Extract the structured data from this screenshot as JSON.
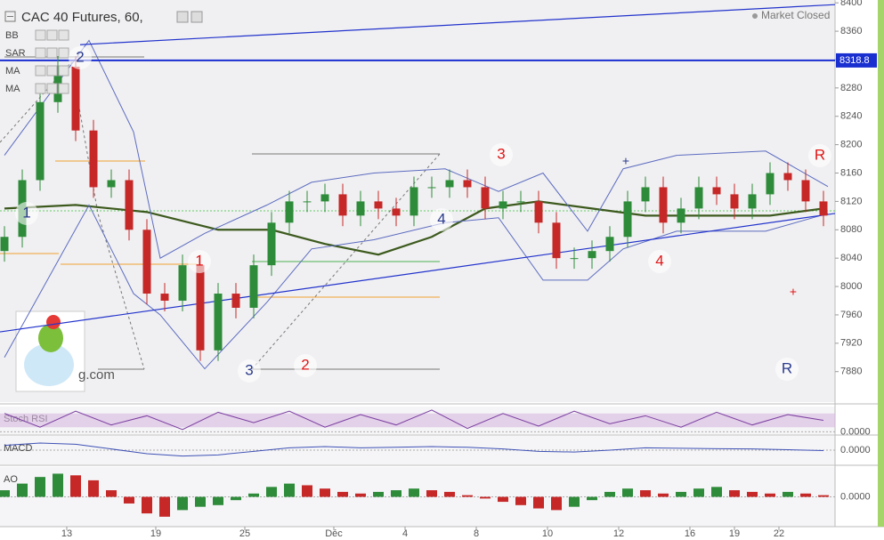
{
  "chart_data": [
    {
      "type": "candlestick",
      "title": "CAC 40 Futures, 60,",
      "indicators": [
        "BB",
        "SAR",
        "MA",
        "MA"
      ],
      "status": "Market Closed",
      "watermark": "g.com",
      "x": [
        0,
        1,
        2,
        3,
        4,
        5,
        6,
        7,
        8,
        9,
        10,
        11,
        12,
        13,
        14,
        15,
        16,
        17,
        18,
        19,
        20,
        21,
        22,
        23,
        24,
        25,
        26,
        27,
        28,
        29,
        30,
        31,
        32,
        33,
        34,
        35,
        36,
        37,
        38,
        39,
        40,
        41,
        42,
        43,
        44,
        45,
        46
      ],
      "open": [
        8050,
        8070,
        8150,
        8260,
        8310,
        8220,
        8140,
        8150,
        8080,
        7990,
        7980,
        8030,
        7910,
        7990,
        7970,
        8030,
        8090,
        8120,
        8120,
        8130,
        8100,
        8120,
        8110,
        8100,
        8140,
        8140,
        8150,
        8140,
        8110,
        8120,
        8120,
        8090,
        8040,
        8040,
        8050,
        8070,
        8120,
        8140,
        8090,
        8110,
        8140,
        8130,
        8110,
        8130,
        8160,
        8150,
        8120
      ],
      "high": [
        8085,
        8165,
        8275,
        8325,
        8325,
        8235,
        8165,
        8165,
        8095,
        8005,
        8045,
        8045,
        8005,
        8005,
        8045,
        8105,
        8135,
        8135,
        8145,
        8145,
        8135,
        8135,
        8125,
        8155,
        8155,
        8165,
        8165,
        8155,
        8135,
        8135,
        8135,
        8105,
        8055,
        8065,
        8085,
        8135,
        8155,
        8155,
        8125,
        8155,
        8155,
        8145,
        8145,
        8175,
        8175,
        8165,
        8135
      ],
      "low": [
        8035,
        8055,
        8135,
        8245,
        8205,
        8125,
        8125,
        8065,
        7975,
        7965,
        7965,
        7895,
        7895,
        7955,
        7955,
        8015,
        8075,
        8105,
        8105,
        8085,
        8085,
        8095,
        8085,
        8085,
        8125,
        8125,
        8125,
        8095,
        8095,
        8105,
        8075,
        8025,
        8025,
        8025,
        8035,
        8055,
        8105,
        8075,
        8075,
        8095,
        8115,
        8095,
        8095,
        8115,
        8135,
        8105,
        8085
      ],
      "close": [
        8070,
        8150,
        8260,
        8310,
        8220,
        8140,
        8150,
        8080,
        7990,
        7980,
        8030,
        7910,
        7990,
        7970,
        8030,
        8090,
        8120,
        8120,
        8130,
        8100,
        8120,
        8110,
        8100,
        8140,
        8140,
        8150,
        8140,
        8110,
        8120,
        8120,
        8090,
        8040,
        8040,
        8050,
        8070,
        8120,
        8140,
        8090,
        8110,
        8140,
        8130,
        8110,
        8130,
        8160,
        8150,
        8120,
        8100
      ],
      "up_color": "#2e8b3a",
      "down_color": "#c62828",
      "overlays": [
        {
          "x": [
            0,
            4,
            8,
            12,
            15,
            18,
            21,
            24,
            27,
            30,
            33,
            36,
            39,
            43,
            46
          ],
          "values": [
            8110,
            8115,
            8105,
            8080,
            8080,
            8060,
            8045,
            8070,
            8110,
            8120,
            8110,
            8100,
            8100,
            8100,
            8110
          ],
          "color": "#3d5a1e"
        },
        {
          "x": [
            0,
            4.75,
            7.25,
            8.75,
            11.25,
            14.75,
            17.25,
            20.75,
            24.75,
            27.75,
            30.25,
            32.75,
            34.75,
            37.75,
            42.75,
            46.25
          ],
          "values": [
            8185,
            8347,
            8218,
            8040,
            8075,
            8115,
            8147,
            8160,
            8166,
            8134,
            8160,
            8078,
            8166,
            8185,
            8191,
            8141
          ],
          "color": "#5c6bc0"
        },
        {
          "x": [
            0,
            4.75,
            7.25,
            8.75,
            11.25,
            14.75,
            17.25,
            20.75,
            24.75,
            27.75,
            30.25,
            32.75,
            34.75,
            37.75,
            42.75,
            46.25
          ],
          "values": [
            7900,
            8115,
            7990,
            7960,
            7884,
            7978,
            8053,
            8066,
            8090,
            8097,
            8009,
            8009,
            8053,
            8078,
            8078,
            8103
          ],
          "color": "#5c6bc0"
        }
      ],
      "trendlines": [
        {
          "x": [
            4.25,
            46.65
          ],
          "values": [
            8341,
            8397.5
          ],
          "color": "#2233cc"
        },
        {
          "x": [
            -0.25,
            46.65
          ],
          "values": [
            7936,
            8103
          ],
          "color": "#2233cc"
        }
      ],
      "level": 8318.8,
      "level_color": "#1a2fd0",
      "annotations": [
        {
          "text": "1",
          "color": "#2a3a8c"
        },
        {
          "text": "2",
          "color": "#2a3a8c"
        },
        {
          "text": "1",
          "color": "#e01515"
        },
        {
          "text": "3",
          "color": "#2a3a8c"
        },
        {
          "text": "2",
          "color": "#e01515"
        },
        {
          "text": "4",
          "color": "#2a3a8c"
        },
        {
          "text": "3",
          "color": "#e01515"
        },
        {
          "text": "+",
          "color": "#2a3a8c"
        },
        {
          "text": "4",
          "color": "#e01515"
        },
        {
          "text": "R",
          "color": "#2a3a8c"
        },
        {
          "text": "+",
          "color": "#e01515"
        },
        {
          "text": "R",
          "color": "#e01515"
        }
      ],
      "xlim": [
        -0.25,
        46.65
      ],
      "ylim": [
        7837,
        8404
      ],
      "xticks": [
        {
          "value": 3.5,
          "label": "13"
        },
        {
          "value": 8.5,
          "label": "19"
        },
        {
          "value": 13.5,
          "label": "25"
        },
        {
          "value": 18.5,
          "label": "Déc"
        },
        {
          "value": 22.5,
          "label": "4"
        },
        {
          "value": 26.5,
          "label": "8"
        },
        {
          "value": 30.5,
          "label": "10"
        },
        {
          "value": 34.5,
          "label": "12"
        },
        {
          "value": 38.5,
          "label": "16"
        },
        {
          "value": 41,
          "label": "19"
        },
        {
          "value": 43.5,
          "label": "22"
        }
      ],
      "yticks": [
        7880,
        7920,
        7960,
        8000,
        8040,
        8080,
        8120,
        8160,
        8200,
        8240,
        8280,
        8320,
        8360,
        8400
      ]
    },
    {
      "type": "line",
      "title": "Stoch RSI",
      "x": [
        0,
        2,
        4,
        6,
        8,
        10,
        12,
        14,
        16,
        18,
        20,
        22,
        24,
        26,
        28,
        30,
        32,
        34,
        36,
        38,
        40,
        42,
        44,
        46
      ],
      "values": [
        80,
        20,
        90,
        30,
        70,
        10,
        85,
        40,
        90,
        20,
        75,
        30,
        95,
        15,
        80,
        25,
        90,
        35,
        70,
        20,
        85,
        30,
        75,
        50
      ],
      "color": "#7b3fa0",
      "band": [
        20,
        80
      ],
      "xlim": [
        -0.25,
        46.65
      ],
      "ylim": [
        -10,
        110
      ],
      "yticks": [
        {
          "value": 0,
          "label": "0.0000"
        }
      ]
    },
    {
      "type": "line",
      "title": "MACD",
      "x": [
        0,
        2,
        4,
        6,
        8,
        10,
        12,
        14,
        16,
        18,
        20,
        22,
        24,
        26,
        28,
        30,
        32,
        34,
        36,
        38,
        40,
        42,
        44,
        46
      ],
      "values": [
        20,
        30,
        25,
        5,
        -15,
        -25,
        -20,
        -5,
        10,
        15,
        10,
        12,
        15,
        12,
        5,
        -5,
        -8,
        0,
        10,
        8,
        6,
        5,
        2,
        -2
      ],
      "color": "#3f51b5",
      "xlim": [
        -0.25,
        46.65
      ],
      "ylim": [
        -60,
        60
      ],
      "yticks": [
        {
          "value": 0,
          "label": "0.0000"
        }
      ]
    },
    {
      "type": "bar",
      "title": "AO",
      "x": [
        0,
        1,
        2,
        3,
        4,
        5,
        6,
        7,
        8,
        9,
        10,
        11,
        12,
        13,
        14,
        15,
        16,
        17,
        18,
        19,
        20,
        21,
        22,
        23,
        24,
        25,
        26,
        27,
        28,
        29,
        30,
        31,
        32,
        33,
        34,
        35,
        36,
        37,
        38,
        39,
        40,
        41,
        42,
        43,
        44,
        45,
        46
      ],
      "values": [
        20,
        40,
        60,
        70,
        65,
        50,
        20,
        -20,
        -50,
        -60,
        -40,
        -30,
        -25,
        -10,
        10,
        30,
        40,
        35,
        25,
        15,
        10,
        15,
        20,
        25,
        20,
        15,
        5,
        -5,
        -15,
        -25,
        -35,
        -40,
        -30,
        -10,
        15,
        25,
        20,
        10,
        15,
        25,
        30,
        20,
        15,
        10,
        15,
        10,
        5
      ],
      "up_color": "#2e8b3a",
      "down_color": "#c62828",
      "xlim": [
        -0.25,
        46.65
      ],
      "ylim": [
        -90,
        90
      ],
      "yticks": [
        {
          "value": 0,
          "label": "0.0000"
        }
      ]
    }
  ]
}
